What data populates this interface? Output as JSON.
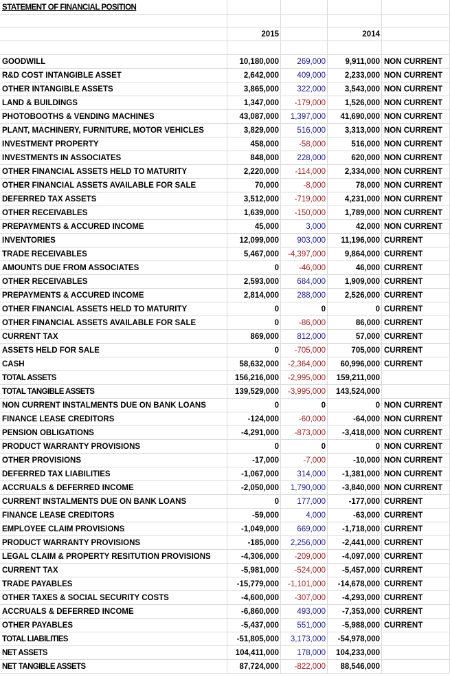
{
  "title": "STATEMENT OF FINANCIAL POSITION",
  "year_headers": [
    "2015",
    "2014"
  ],
  "colors": {
    "positive_change": "#1a1a8c",
    "negative_change": "#9b1c1c",
    "text": "#000000",
    "gridline": "#dadada"
  },
  "rows": [
    [
      "GOODWILL",
      "10,180,000",
      "269,000",
      "9,911,000",
      "NON CURRENT"
    ],
    [
      "R&D COST INTANGIBLE ASSET",
      "2,642,000",
      "409,000",
      "2,233,000",
      "NON CURRENT"
    ],
    [
      "OTHER INTANGIBLE ASSETS",
      "3,865,000",
      "322,000",
      "3,543,000",
      "NON CURRENT"
    ],
    [
      "LAND & BUILDINGS",
      "1,347,000",
      "-179,000",
      "1,526,000",
      "NON CURRENT"
    ],
    [
      "PHOTOBOOTHS & VENDING MACHINES",
      "43,087,000",
      "1,397,000",
      "41,690,000",
      "NON CURRENT"
    ],
    [
      "PLANT, MACHINERY, FURNITURE, MOTOR VEHICLES",
      "3,829,000",
      "516,000",
      "3,313,000",
      "NON CURRENT"
    ],
    [
      "INVESTMENT PROPERTY",
      "458,000",
      "-58,000",
      "516,000",
      "NON CURRENT"
    ],
    [
      "INVESTMENTS IN ASSOCIATES",
      "848,000",
      "228,000",
      "620,000",
      "NON CURRENT"
    ],
    [
      "OTHER FINANCIAL ASSETS HELD TO MATURITY",
      "2,220,000",
      "-114,000",
      "2,334,000",
      "NON CURRENT"
    ],
    [
      "OTHER FINANCIAL ASSETS AVAILABLE FOR SALE",
      "70,000",
      "-8,000",
      "78,000",
      "NON CURRENT"
    ],
    [
      "DEFERRED TAX ASSETS",
      "3,512,000",
      "-719,000",
      "4,231,000",
      "NON CURRENT"
    ],
    [
      "OTHER RECEIVABLES",
      "1,639,000",
      "-150,000",
      "1,789,000",
      "NON CURRENT"
    ],
    [
      "PREPAYMENTS & ACCURED INCOME",
      "45,000",
      "3,000",
      "42,000",
      "NON CURRENT"
    ],
    [
      "INVENTORIES",
      "12,099,000",
      "903,000",
      "11,196,000",
      "CURRENT"
    ],
    [
      "TRADE RECEIVABLES",
      "5,467,000",
      "-4,397,000",
      "9,864,000",
      "CURRENT"
    ],
    [
      "AMOUNTS DUE FROM ASSOCIATES",
      "0",
      "-46,000",
      "46,000",
      "CURRENT"
    ],
    [
      "OTHER RECEIVABLES",
      "2,593,000",
      "684,000",
      "1,909,000",
      "CURRENT"
    ],
    [
      "PREPAYMENTS & ACCURED INCOME",
      "2,814,000",
      "288,000",
      "2,526,000",
      "CURRENT"
    ],
    [
      "OTHER FINANCIAL ASSETS HELD TO MATURITY",
      "0",
      "0",
      "0",
      "CURRENT"
    ],
    [
      "OTHER FINANCIAL ASSETS AVAILABLE FOR SALE",
      "0",
      "-86,000",
      "86,000",
      "CURRENT"
    ],
    [
      "CURRENT TAX",
      "869,000",
      "812,000",
      "57,000",
      "CURRENT"
    ],
    [
      "ASSETS HELD FOR SALE",
      "0",
      "-705,000",
      "705,000",
      "CURRENT"
    ],
    [
      "CASH",
      "58,632,000",
      "-2,364,000",
      "60,996,000",
      "CURRENT"
    ],
    [
      "TOTAL ASSETS",
      "156,216,000",
      "-2,995,000",
      "159,211,000",
      ""
    ],
    [
      "TOTAL TANGIBLE ASSETS",
      "139,529,000",
      "-3,995,000",
      "143,524,000",
      ""
    ],
    [
      "NON CURRENT INSTALMENTS DUE ON BANK LOANS",
      "0",
      "0",
      "0",
      "NON CURRENT"
    ],
    [
      "FINANCE LEASE CREDITORS",
      "-124,000",
      "-60,000",
      "-64,000",
      "NON CURRENT"
    ],
    [
      "PENSION OBLIGATIONS",
      "-4,291,000",
      "-873,000",
      "-3,418,000",
      "NON CURRENT"
    ],
    [
      "PRODUCT WARRANTY PROVISIONS",
      "0",
      "0",
      "0",
      "NON CURRENT"
    ],
    [
      "OTHER PROVISIONS",
      "-17,000",
      "-7,000",
      "-10,000",
      "NON CURRENT"
    ],
    [
      "DEFERRED TAX LIABILITIES",
      "-1,067,000",
      "314,000",
      "-1,381,000",
      "NON CURRENT"
    ],
    [
      "ACCRUALS & DEFERRED INCOME",
      "-2,050,000",
      "1,790,000",
      "-3,840,000",
      "NON CURRENT"
    ],
    [
      "CURRENT INSTALMENTS DUE ON BANK LOANS",
      "0",
      "177,000",
      "-177,000",
      "CURRENT"
    ],
    [
      "FINANCE LEASE CREDITORS",
      "-59,000",
      "4,000",
      "-63,000",
      "CURRENT"
    ],
    [
      "EMPLOYEE CLAIM PROVISIONS",
      "-1,049,000",
      "669,000",
      "-1,718,000",
      "CURRENT"
    ],
    [
      "PRODUCT WARRANTY PROVISIONS",
      "-185,000",
      "2,256,000",
      "-2,441,000",
      "CURRENT"
    ],
    [
      "LEGAL CLAIM & PROPERTY RESITUTION PROVISIONS",
      "-4,306,000",
      "-209,000",
      "-4,097,000",
      "CURRENT"
    ],
    [
      "CURRENT TAX",
      "-5,981,000",
      "-524,000",
      "-5,457,000",
      "CURRENT"
    ],
    [
      "TRADE PAYABLES",
      "-15,779,000",
      "-1,101,000",
      "-14,678,000",
      "CURRENT"
    ],
    [
      "OTHER TAXES & SOCIAL SECURITY COSTS",
      "-4,600,000",
      "-307,000",
      "-4,293,000",
      "CURRENT"
    ],
    [
      "ACCRUALS & DEFERRED INCOME",
      "-6,860,000",
      "493,000",
      "-7,353,000",
      "CURRENT"
    ],
    [
      "OTHER PAYABLES",
      "-5,437,000",
      "551,000",
      "-5,988,000",
      "CURRENT"
    ],
    [
      "TOTAL LIABILITIES",
      "-51,805,000",
      "3,173,000",
      "-54,978,000",
      ""
    ],
    [
      "NET ASSETS",
      "104,411,000",
      "178,000",
      "104,233,000",
      ""
    ],
    [
      "NET TANGIBLE ASSETS",
      "87,724,000",
      "-822,000",
      "88,546,000",
      ""
    ]
  ]
}
